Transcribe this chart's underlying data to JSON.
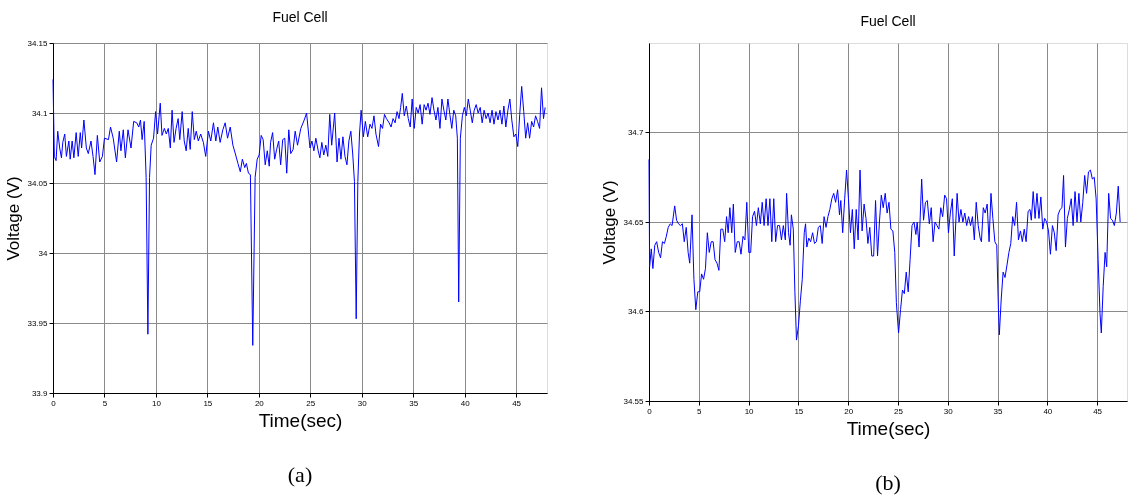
{
  "chart_data": [
    {
      "type": "line",
      "title": "Fuel Cell",
      "xlabel": "Time(sec)",
      "ylabel": "Voltage (V)",
      "annotations": [
        "(a)"
      ],
      "xlim": [
        0,
        48
      ],
      "xticks": [
        0,
        5,
        10,
        15,
        20,
        25,
        30,
        35,
        40,
        45
      ],
      "ylim": [
        33.9,
        34.15
      ],
      "yticks": [
        33.9,
        33.95,
        34,
        34.05,
        34.1,
        34.15
      ],
      "grid": true,
      "series": [
        {
          "color": "#0000ff",
          "x": [
            0,
            0.13,
            0.3,
            0.46,
            0.65,
            0.82,
            0.95,
            1.14,
            1.3,
            1.54,
            1.67,
            1.86,
            2.03,
            2.25,
            2.45,
            2.65,
            2.78,
            3.0,
            3.24,
            3.43,
            3.69,
            3.89,
            4.08,
            4.31,
            4.54,
            4.8,
            5.0,
            5.39,
            5.59,
            5.85,
            6.18,
            6.44,
            6.6,
            6.83,
            7.03,
            7.29,
            7.58,
            7.84,
            8.14,
            8.33,
            8.5,
            8.66,
            8.86,
            9.05,
            9.22,
            9.38,
            9.54,
            9.77,
            9.97,
            10.16,
            10.42,
            10.59,
            10.82,
            11.01,
            11.2,
            11.4,
            11.57,
            11.76,
            11.96,
            12.16,
            12.32,
            12.55,
            12.75,
            12.94,
            13.14,
            13.33,
            13.53,
            13.73,
            13.92,
            14.12,
            14.35,
            14.61,
            14.84,
            15.1,
            15.33,
            15.59,
            15.82,
            16.01,
            16.24,
            16.5,
            16.73,
            16.96,
            17.22,
            17.48,
            17.75,
            17.97,
            18.2,
            18.4,
            18.63,
            18.79,
            18.99,
            19.18,
            19.41,
            19.64,
            19.84,
            20.03,
            20.23,
            20.42,
            20.62,
            20.82,
            21.01,
            21.14,
            21.34,
            21.54,
            21.73,
            21.93,
            22.12,
            22.32,
            22.52,
            22.71,
            22.91,
            23.1,
            23.33,
            23.53,
            23.76,
            24.08,
            24.41,
            24.64,
            24.97,
            25.16,
            25.35,
            25.54,
            25.77,
            25.93,
            26.12,
            26.31,
            26.51,
            26.7,
            26.89,
            27.08,
            27.37,
            27.6,
            27.79,
            27.98,
            28.17,
            28.37,
            28.56,
            28.75,
            28.94,
            29.13,
            29.29,
            29.46,
            29.62,
            29.78,
            29.94,
            30.16,
            30.35,
            30.58,
            30.8,
            30.99,
            31.19,
            31.38,
            31.63,
            31.83,
            32.02,
            32.21,
            32.4,
            32.66,
            32.85,
            33.04,
            33.24,
            33.43,
            33.62,
            33.78,
            33.94,
            34.13,
            34.33,
            34.52,
            34.71,
            34.9,
            35.1,
            35.29,
            35.48,
            35.67,
            35.87,
            36.06,
            36.25,
            36.44,
            36.63,
            36.83,
            37.02,
            37.21,
            37.4,
            37.6,
            37.79,
            37.98,
            38.17,
            38.37,
            38.56,
            38.75,
            38.94,
            39.13,
            39.29,
            39.42,
            39.58,
            39.78,
            39.97,
            40.16,
            40.35,
            40.54,
            40.74,
            40.93,
            41.12,
            41.31,
            41.51,
            41.7,
            41.89,
            42.08,
            42.28,
            42.47,
            42.66,
            42.85,
            43.04,
            43.24,
            43.43,
            43.62,
            43.81,
            44.0,
            44.2,
            44.39,
            44.58,
            44.78,
            44.97,
            45.16,
            45.35,
            45.54,
            45.74,
            45.93,
            46.12,
            46.31,
            46.51,
            46.7,
            46.89,
            47.08,
            47.28,
            47.47,
            47.66,
            47.82
          ],
          "values": [
            34.124,
            34.069,
            34.066,
            34.087,
            34.075,
            34.068,
            34.079,
            34.085,
            34.069,
            34.08,
            34.067,
            34.08,
            34.068,
            34.086,
            34.069,
            34.086,
            34.075,
            34.095,
            34.075,
            34.071,
            34.08,
            34.069,
            34.056,
            34.084,
            34.065,
            34.069,
            34.082,
            34.081,
            34.09,
            34.082,
            34.065,
            34.087,
            34.073,
            34.088,
            34.068,
            34.088,
            34.075,
            34.094,
            34.093,
            34.09,
            34.095,
            34.081,
            34.094,
            34.054,
            33.942,
            34.054,
            34.077,
            34.082,
            34.101,
            34.085,
            34.107,
            34.084,
            34.089,
            34.085,
            34.089,
            34.075,
            34.102,
            34.079,
            34.089,
            34.096,
            34.081,
            34.101,
            34.08,
            34.073,
            34.089,
            34.074,
            34.101,
            34.081,
            34.087,
            34.08,
            34.085,
            34.079,
            34.069,
            34.087,
            34.08,
            34.093,
            34.08,
            34.09,
            34.079,
            34.088,
            34.093,
            34.082,
            34.09,
            34.077,
            34.07,
            34.064,
            34.058,
            34.067,
            34.061,
            34.064,
            34.057,
            34.056,
            33.934,
            34.054,
            34.067,
            34.07,
            34.084,
            34.081,
            34.063,
            34.073,
            34.062,
            34.079,
            34.086,
            34.067,
            34.074,
            34.08,
            34.063,
            34.081,
            34.082,
            34.057,
            34.088,
            34.071,
            34.074,
            34.087,
            34.077,
            34.089,
            34.095,
            34.1,
            34.075,
            34.08,
            34.073,
            34.082,
            34.073,
            34.068,
            34.079,
            34.07,
            34.077,
            34.069,
            34.099,
            34.077,
            34.1,
            34.065,
            34.082,
            34.067,
            34.083,
            34.069,
            34.063,
            34.08,
            34.087,
            34.07,
            34.051,
            33.953,
            34.051,
            34.085,
            34.102,
            34.083,
            34.094,
            34.083,
            34.092,
            34.089,
            34.098,
            34.085,
            34.076,
            34.092,
            34.089,
            34.099,
            34.096,
            34.093,
            34.09,
            34.096,
            34.093,
            34.101,
            34.096,
            34.104,
            34.114,
            34.098,
            34.105,
            34.096,
            34.09,
            34.11,
            34.089,
            34.104,
            34.1,
            34.106,
            34.092,
            34.106,
            34.102,
            34.107,
            34.099,
            34.111,
            34.102,
            34.095,
            34.104,
            34.089,
            34.11,
            34.102,
            34.095,
            34.11,
            34.099,
            34.089,
            34.102,
            34.098,
            34.082,
            33.965,
            34.082,
            34.098,
            34.104,
            34.098,
            34.11,
            34.102,
            34.093,
            34.102,
            34.106,
            34.1,
            34.104,
            34.093,
            34.102,
            34.096,
            34.1,
            34.093,
            34.102,
            34.092,
            34.101,
            34.095,
            34.102,
            34.092,
            34.105,
            34.09,
            34.102,
            34.11,
            34.095,
            34.083,
            34.085,
            34.076,
            34.099,
            34.119,
            34.101,
            34.082,
            34.093,
            34.082,
            34.094,
            34.09,
            34.098,
            34.094,
            34.089,
            34.118,
            34.096,
            34.104
          ]
        }
      ]
    },
    {
      "type": "line",
      "title": "Fuel Cell",
      "xlabel": "Time(sec)",
      "ylabel": "Voltage (V)",
      "annotations": [
        "(b)"
      ],
      "xlim": [
        0,
        48
      ],
      "xticks": [
        0,
        5,
        10,
        15,
        20,
        25,
        30,
        35,
        40,
        45
      ],
      "ylim": [
        34.55,
        34.75
      ],
      "yticks": [
        34.55,
        34.6,
        34.65,
        34.7
      ],
      "grid": true,
      "series": [
        {
          "color": "#0000ff",
          "x": [
            0,
            0.06,
            0.23,
            0.39,
            0.58,
            0.77,
            0.97,
            1.16,
            1.35,
            1.55,
            1.74,
            1.93,
            2.13,
            2.32,
            2.58,
            2.77,
            2.96,
            3.16,
            3.35,
            3.54,
            3.74,
            3.93,
            4.09,
            4.32,
            4.51,
            4.7,
            4.9,
            5.09,
            5.28,
            5.48,
            5.67,
            5.86,
            6.05,
            6.25,
            6.44,
            6.63,
            6.83,
            7.02,
            7.21,
            7.41,
            7.6,
            7.79,
            7.95,
            8.12,
            8.31,
            8.47,
            8.66,
            8.86,
            9.05,
            9.24,
            9.44,
            9.63,
            9.82,
            10.02,
            10.21,
            10.4,
            10.6,
            10.79,
            10.98,
            11.18,
            11.37,
            11.56,
            11.76,
            11.95,
            12.14,
            12.33,
            12.53,
            12.72,
            12.91,
            13.11,
            13.3,
            13.49,
            13.69,
            13.82,
            14.01,
            14.17,
            14.3,
            14.49,
            14.65,
            14.81,
            15.01,
            15.2,
            15.39,
            15.59,
            15.72,
            15.85,
            16.04,
            16.23,
            16.43,
            16.62,
            16.81,
            17.0,
            17.2,
            17.39,
            17.58,
            17.78,
            17.97,
            18.16,
            18.36,
            18.55,
            18.74,
            18.94,
            19.13,
            19.26,
            19.45,
            19.65,
            19.84,
            20.03,
            20.23,
            20.42,
            20.61,
            20.81,
            21.0,
            21.19,
            21.4,
            21.6,
            21.79,
            21.98,
            22.17,
            22.37,
            22.56,
            22.75,
            22.95,
            23.14,
            23.33,
            23.52,
            23.72,
            23.91,
            24.1,
            24.29,
            24.49,
            24.68,
            24.84,
            25.06,
            25.26,
            25.45,
            25.64,
            25.83,
            26.03,
            26.22,
            26.41,
            26.61,
            26.8,
            26.93,
            27.12,
            27.38,
            27.57,
            27.76,
            27.95,
            28.15,
            28.34,
            28.53,
            28.72,
            28.92,
            29.11,
            29.3,
            29.49,
            29.69,
            29.88,
            30.07,
            30.26,
            30.46,
            30.65,
            30.94,
            31.13,
            31.32,
            31.52,
            31.71,
            31.9,
            32.09,
            32.29,
            32.48,
            32.67,
            32.86,
            33.06,
            33.25,
            33.38,
            33.57,
            33.76,
            33.96,
            34.15,
            34.34,
            34.53,
            34.73,
            34.92,
            35.08,
            35.18,
            35.37,
            35.56,
            35.75,
            35.95,
            36.14,
            36.33,
            36.52,
            36.72,
            36.91,
            37.1,
            37.3,
            37.49,
            37.68,
            37.87,
            38.07,
            38.26,
            38.39,
            38.58,
            38.77,
            38.96,
            39.16,
            39.35,
            39.54,
            39.73,
            39.93,
            40.12,
            40.31,
            40.51,
            40.7,
            40.89,
            41.08,
            41.28,
            41.47,
            41.63,
            41.82,
            42.01,
            42.21,
            42.4,
            42.59,
            42.78,
            42.98,
            43.17,
            43.36,
            43.56,
            43.75,
            43.94,
            44.13,
            44.33,
            44.52,
            44.71,
            44.9,
            45.1,
            45.29,
            45.42,
            45.61,
            45.8,
            45.96,
            46.16,
            46.35,
            46.54,
            46.73,
            46.93,
            47.12,
            47.31
          ],
          "values": [
            34.685,
            34.625,
            34.635,
            34.624,
            34.637,
            34.639,
            34.633,
            34.63,
            34.639,
            34.638,
            34.642,
            34.647,
            34.649,
            34.648,
            34.659,
            34.651,
            34.649,
            34.648,
            34.649,
            34.639,
            34.647,
            34.633,
            34.627,
            34.654,
            34.618,
            34.601,
            34.611,
            34.611,
            34.621,
            34.618,
            34.624,
            34.644,
            34.633,
            34.639,
            34.639,
            34.629,
            34.627,
            34.623,
            34.646,
            34.646,
            34.639,
            34.653,
            34.644,
            34.658,
            34.644,
            34.66,
            34.633,
            34.639,
            34.639,
            34.632,
            34.642,
            34.64,
            34.661,
            34.633,
            34.633,
            34.653,
            34.656,
            34.648,
            34.658,
            34.649,
            34.661,
            34.648,
            34.663,
            34.648,
            34.663,
            34.639,
            34.663,
            34.639,
            34.648,
            34.648,
            34.64,
            34.648,
            34.64,
            34.666,
            34.644,
            34.637,
            34.654,
            34.646,
            34.611,
            34.584,
            34.592,
            34.606,
            34.618,
            34.644,
            34.649,
            34.636,
            34.641,
            34.639,
            34.644,
            34.638,
            34.639,
            34.647,
            34.648,
            34.638,
            34.653,
            34.647,
            34.653,
            34.657,
            34.663,
            34.666,
            34.661,
            34.668,
            34.654,
            34.662,
            34.644,
            34.663,
            34.679,
            34.663,
            34.644,
            34.657,
            34.635,
            34.657,
            34.64,
            34.679,
            34.645,
            34.66,
            34.652,
            34.638,
            34.647,
            34.631,
            34.631,
            34.662,
            34.631,
            34.65,
            34.665,
            34.658,
            34.666,
            34.655,
            34.661,
            34.646,
            34.645,
            34.633,
            34.605,
            34.588,
            34.601,
            34.612,
            34.61,
            34.622,
            34.611,
            34.629,
            34.648,
            34.65,
            34.643,
            34.65,
            34.636,
            34.674,
            34.651,
            34.661,
            34.662,
            34.649,
            34.658,
            34.639,
            34.65,
            34.648,
            34.646,
            34.658,
            34.653,
            34.665,
            34.663,
            34.644,
            34.655,
            34.663,
            34.631,
            34.666,
            34.65,
            34.657,
            34.65,
            34.655,
            34.648,
            34.653,
            34.648,
            34.653,
            34.64,
            34.661,
            34.648,
            34.641,
            34.639,
            34.658,
            34.655,
            34.66,
            34.639,
            34.666,
            34.652,
            34.639,
            34.637,
            34.603,
            34.587,
            34.607,
            34.622,
            34.619,
            34.626,
            34.633,
            34.638,
            34.653,
            34.648,
            34.661,
            34.64,
            34.645,
            34.639,
            34.646,
            34.639,
            34.656,
            34.657,
            34.651,
            34.667,
            34.652,
            34.666,
            34.652,
            34.664,
            34.646,
            34.652,
            34.65,
            34.645,
            34.632,
            34.648,
            34.644,
            34.634,
            34.654,
            34.657,
            34.658,
            34.676,
            34.636,
            34.652,
            34.657,
            34.663,
            34.648,
            34.667,
            34.65,
            34.666,
            34.65,
            34.661,
            34.676,
            34.666,
            34.678,
            34.679,
            34.674,
            34.675,
            34.663,
            34.629,
            34.599,
            34.588,
            34.614,
            34.633,
            34.625,
            34.666,
            34.652,
            34.651,
            34.648,
            34.655,
            34.67,
            34.65
          ]
        }
      ]
    }
  ]
}
